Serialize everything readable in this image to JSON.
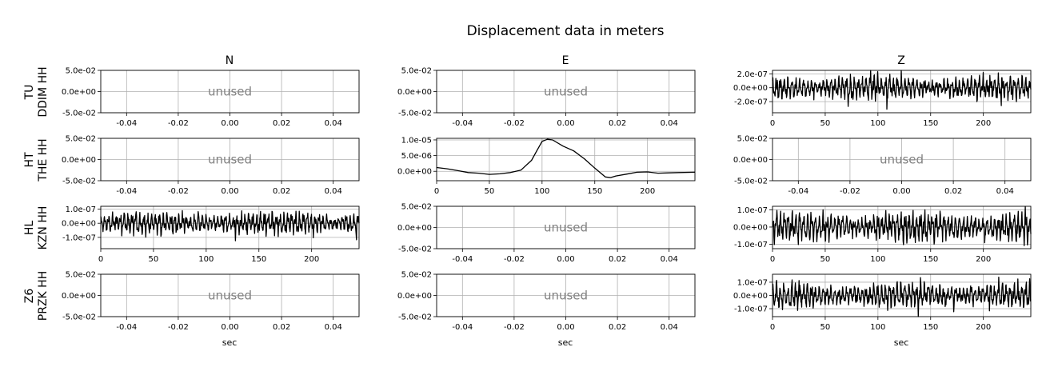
{
  "figure": {
    "title": "Displacement data in meters",
    "columns": [
      "N",
      "E",
      "Z"
    ],
    "rows": [
      {
        "network": "TU",
        "station": "DDIM HH"
      },
      {
        "network": "HT",
        "station": "THE HH"
      },
      {
        "network": "HL",
        "station": "KZN HH"
      },
      {
        "network": "Z6",
        "station": "PRZK HH"
      }
    ],
    "xlabel": "sec",
    "unused_label": "unused"
  },
  "chart_data": [
    {
      "type": "line",
      "row": 0,
      "col": 0,
      "unused": true,
      "xlim": [
        -0.05,
        0.05
      ],
      "ylim": [
        -0.05,
        0.05
      ],
      "x_ticks": [
        -0.04,
        -0.02,
        0.0,
        0.02,
        0.04
      ],
      "x_tick_labels": [
        "-0.04",
        "-0.02",
        "0.00",
        "0.02",
        "0.04"
      ],
      "y_ticks": [
        0.05,
        0.0,
        -0.05
      ],
      "y_tick_labels": [
        "5.0e-02",
        "0.0e+00",
        "-5.0e-02"
      ],
      "grid": true
    },
    {
      "type": "line",
      "row": 0,
      "col": 1,
      "unused": true,
      "xlim": [
        -0.05,
        0.05
      ],
      "ylim": [
        -0.05,
        0.05
      ],
      "x_ticks": [
        -0.04,
        -0.02,
        0.0,
        0.02,
        0.04
      ],
      "x_tick_labels": [
        "-0.04",
        "-0.02",
        "0.00",
        "0.02",
        "0.04"
      ],
      "y_ticks": [
        0.05,
        0.0,
        -0.05
      ],
      "y_tick_labels": [
        "5.0e-02",
        "0.0e+00",
        "-5.0e-02"
      ],
      "grid": true
    },
    {
      "type": "line",
      "row": 0,
      "col": 2,
      "unused": false,
      "xlim": [
        0,
        245
      ],
      "ylim": [
        -3.6e-07,
        2.5e-07
      ],
      "x_ticks": [
        0,
        50,
        100,
        150,
        200
      ],
      "x_tick_labels": [
        "0",
        "50",
        "100",
        "150",
        "200"
      ],
      "y_ticks": [
        2e-07,
        0.0,
        -2e-07
      ],
      "y_tick_labels": [
        "2.0e-07",
        "0.0e+00",
        "-2.0e-07"
      ],
      "grid": true,
      "series": [
        {
          "noise": true,
          "amplitude": 2e-07,
          "offset": 0,
          "seed": 11
        }
      ]
    },
    {
      "type": "line",
      "row": 1,
      "col": 0,
      "unused": true,
      "xlim": [
        -0.05,
        0.05
      ],
      "ylim": [
        -0.05,
        0.05
      ],
      "x_ticks": [
        -0.04,
        -0.02,
        0.0,
        0.02,
        0.04
      ],
      "x_tick_labels": [
        "-0.04",
        "-0.02",
        "0.00",
        "0.02",
        "0.04"
      ],
      "y_ticks": [
        0.05,
        0.0,
        -0.05
      ],
      "y_tick_labels": [
        "5.0e-02",
        "0.0e+00",
        "-5.0e-02"
      ],
      "grid": true
    },
    {
      "type": "line",
      "row": 1,
      "col": 1,
      "unused": false,
      "xlim": [
        0,
        245
      ],
      "ylim": [
        -3e-06,
        1.05e-05
      ],
      "x_ticks": [
        0,
        50,
        100,
        150,
        200
      ],
      "x_tick_labels": [
        "0",
        "50",
        "100",
        "150",
        "200"
      ],
      "y_ticks": [
        1e-05,
        5e-06,
        0.0
      ],
      "y_tick_labels": [
        "1.0e-05",
        "5.0e-06",
        "0.0e+00"
      ],
      "grid": true,
      "series": [
        {
          "noise": false,
          "x": [
            0,
            10,
            20,
            30,
            40,
            50,
            60,
            70,
            80,
            90,
            95,
            100,
            105,
            110,
            120,
            130,
            140,
            150,
            160,
            165,
            170,
            180,
            190,
            200,
            210,
            220,
            230,
            245
          ],
          "y": [
            1.2e-06,
            8e-07,
            2e-07,
            -4e-07,
            -6e-07,
            -1e-06,
            -8e-07,
            -4e-07,
            4e-07,
            3.5e-06,
            6.5e-06,
            9.5e-06,
            1.02e-05,
            1e-05,
            8e-06,
            6.5e-06,
            4e-06,
            1e-06,
            -1.8e-06,
            -2e-06,
            -1.5e-06,
            -9e-07,
            -3e-07,
            -2e-07,
            -6e-07,
            -5e-07,
            -4e-07,
            -3e-07
          ]
        }
      ]
    },
    {
      "type": "line",
      "row": 1,
      "col": 2,
      "unused": true,
      "xlim": [
        -0.05,
        0.05
      ],
      "ylim": [
        -0.05,
        0.05
      ],
      "x_ticks": [
        -0.04,
        -0.02,
        0.0,
        0.02,
        0.04
      ],
      "x_tick_labels": [
        "-0.04",
        "-0.02",
        "0.00",
        "0.02",
        "0.04"
      ],
      "y_ticks": [
        0.05,
        0.0,
        -0.05
      ],
      "y_tick_labels": [
        "5.0e-02",
        "0.0e+00",
        "-5.0e-02"
      ],
      "grid": true
    },
    {
      "type": "line",
      "row": 2,
      "col": 0,
      "unused": false,
      "xlim": [
        0,
        245
      ],
      "ylim": [
        -1.8e-07,
        1.2e-07
      ],
      "x_ticks": [
        0,
        50,
        100,
        150,
        200
      ],
      "x_tick_labels": [
        "0",
        "50",
        "100",
        "150",
        "200"
      ],
      "y_ticks": [
        1e-07,
        0.0,
        -1e-07
      ],
      "y_tick_labels": [
        "1.0e-07",
        "0.0e+00",
        "-1.0e-07"
      ],
      "grid": true,
      "series": [
        {
          "noise": true,
          "amplitude": 9e-08,
          "offset": 0,
          "seed": 23
        }
      ]
    },
    {
      "type": "line",
      "row": 2,
      "col": 1,
      "unused": true,
      "xlim": [
        -0.05,
        0.05
      ],
      "ylim": [
        -0.05,
        0.05
      ],
      "x_ticks": [
        -0.04,
        -0.02,
        0.0,
        0.02,
        0.04
      ],
      "x_tick_labels": [
        "-0.04",
        "-0.02",
        "0.00",
        "0.02",
        "0.04"
      ],
      "y_ticks": [
        0.05,
        0.0,
        -0.05
      ],
      "y_tick_labels": [
        "5.0e-02",
        "0.0e+00",
        "-5.0e-02"
      ],
      "grid": true
    },
    {
      "type": "line",
      "row": 2,
      "col": 2,
      "unused": false,
      "xlim": [
        0,
        245
      ],
      "ylim": [
        -1.25e-07,
        1.2e-07
      ],
      "x_ticks": [
        0,
        50,
        100,
        150,
        200
      ],
      "x_tick_labels": [
        "0",
        "50",
        "100",
        "150",
        "200"
      ],
      "y_ticks": [
        1e-07,
        0.0,
        -1e-07
      ],
      "y_tick_labels": [
        "1.0e-07",
        "0.0e+00",
        "-1.0e-07"
      ],
      "grid": true,
      "series": [
        {
          "noise": true,
          "amplitude": 1e-07,
          "offset": 0,
          "seed": 37
        }
      ]
    },
    {
      "type": "line",
      "row": 3,
      "col": 0,
      "unused": true,
      "xlim": [
        -0.05,
        0.05
      ],
      "ylim": [
        -0.05,
        0.05
      ],
      "x_ticks": [
        -0.04,
        -0.02,
        0.0,
        0.02,
        0.04
      ],
      "x_tick_labels": [
        "-0.04",
        "-0.02",
        "0.00",
        "0.02",
        "0.04"
      ],
      "y_ticks": [
        0.05,
        0.0,
        -0.05
      ],
      "y_tick_labels": [
        "5.0e-02",
        "0.0e+00",
        "-5.0e-02"
      ],
      "grid": true
    },
    {
      "type": "line",
      "row": 3,
      "col": 1,
      "unused": true,
      "xlim": [
        -0.05,
        0.05
      ],
      "ylim": [
        -0.05,
        0.05
      ],
      "x_ticks": [
        -0.04,
        -0.02,
        0.0,
        0.02,
        0.04
      ],
      "x_tick_labels": [
        "-0.04",
        "-0.02",
        "0.00",
        "0.02",
        "0.04"
      ],
      "y_ticks": [
        0.05,
        0.0,
        -0.05
      ],
      "y_tick_labels": [
        "5.0e-02",
        "0.0e+00",
        "-5.0e-02"
      ],
      "grid": true
    },
    {
      "type": "line",
      "row": 3,
      "col": 2,
      "unused": false,
      "xlim": [
        0,
        245
      ],
      "ylim": [
        -1.6e-07,
        1.6e-07
      ],
      "x_ticks": [
        0,
        50,
        100,
        150,
        200
      ],
      "x_tick_labels": [
        "0",
        "50",
        "100",
        "150",
        "200"
      ],
      "y_ticks": [
        1e-07,
        0.0,
        -1e-07
      ],
      "y_tick_labels": [
        "1.0e-07",
        "0.0e+00",
        "-1.0e-07"
      ],
      "grid": true,
      "series": [
        {
          "noise": true,
          "amplitude": 1.1e-07,
          "offset": 0,
          "seed": 51
        }
      ]
    }
  ]
}
